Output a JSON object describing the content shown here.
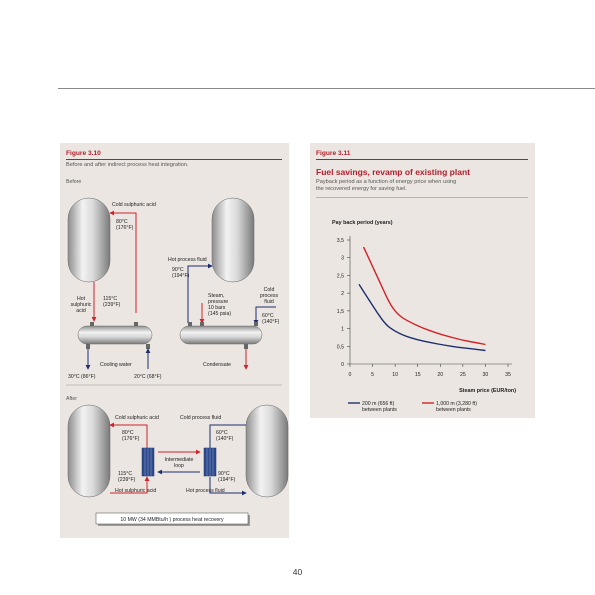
{
  "page_number": "40",
  "left_figure": {
    "label": "Figure 3.10",
    "subtitle": "Before and after indirect process heat integration.",
    "before": {
      "section": "Before",
      "cold_sulphuric_acid": "Cold sulphuric acid",
      "temp_80c": "80°C",
      "temp_176f": "(176°F)",
      "hot_process_fluid": "Hot process fluid",
      "temp_90c": "90°C",
      "temp_194f": "(194°F)",
      "hot_label_1": "Hot",
      "hot_label_2": "sulphuric",
      "hot_label_3": "acid",
      "temp_115c": "115°C",
      "temp_239f": "(239°F)",
      "steam_1": "Steam,",
      "steam_2": "pressure",
      "steam_3": "10 bars",
      "steam_4": "(145 psia)",
      "cold_fluid_1": "Cold",
      "cold_fluid_2": "process",
      "cold_fluid_3": "fluid",
      "temp_60c": "60°C",
      "temp_140f": "(140°F)",
      "cooling_water": "Cooling water",
      "condensate": "Condensate",
      "temp_30c": "30°C (86°F)",
      "temp_20c": "20°C (68°F)"
    },
    "after": {
      "section": "After",
      "cold_sulphuric_acid": "Cold sulphuric acid",
      "cold_process_fluid": "Cold process fluid",
      "temp_80c": "80°C",
      "temp_176f": "(176°F)",
      "temp_60c": "60°C",
      "temp_140f": "(140°F)",
      "loop_1": "Intermediate",
      "loop_2": "loop",
      "temp_115c": "115°C",
      "temp_239f": "(239°F)",
      "temp_90c": "90°C",
      "temp_194f": "(194°F)",
      "hot_sulphuric_acid": "Hot sulphuric acid",
      "hot_process_fluid": "Hot process fluid",
      "recovery": "10 MW (34 MMBtu/h ) process heat recovery"
    }
  },
  "right_figure": {
    "label": "Figure 3.11",
    "title": "Fuel savings, revamp of existing plant",
    "subtitle_1": "Payback period as a function of energy price when using",
    "subtitle_2": "the recovered energy for saving fuel."
  },
  "chart_data": {
    "type": "line",
    "title": "",
    "ylabel": "Pay back period (years)",
    "xlabel": "Steam price (EUR/ton)",
    "xlim": [
      0,
      35
    ],
    "ylim": [
      0,
      3.5
    ],
    "x_ticks": [
      "0",
      "5",
      "10",
      "15",
      "20",
      "25",
      "30",
      "35"
    ],
    "y_ticks": [
      "0",
      "0,5",
      "1",
      "1,5",
      "2",
      "2,5",
      "3",
      "3,5"
    ],
    "x_tick_values": [
      0,
      5,
      10,
      15,
      20,
      25,
      30,
      35
    ],
    "y_tick_values": [
      0,
      0.5,
      1,
      1.5,
      2,
      2.5,
      3,
      3.5
    ],
    "legend_position": "bottom",
    "series": [
      {
        "name": "200 m (656 ft) between plants",
        "legend_line1": "200 m (656 ft)",
        "legend_line2": "between plants",
        "color": "#1f2f6e",
        "x": [
          2,
          4,
          6,
          8,
          10,
          12,
          15,
          18,
          21,
          24,
          27,
          30
        ],
        "y": [
          2.25,
          1.85,
          1.45,
          1.1,
          0.92,
          0.8,
          0.68,
          0.6,
          0.53,
          0.47,
          0.43,
          0.38
        ]
      },
      {
        "name": "1,000 m (3,280 ft) between plants",
        "legend_line1": "1,000 m (3,280 ft)",
        "legend_line2": "between plants",
        "color": "#d2232a",
        "x": [
          3,
          5,
          7,
          9,
          11,
          13,
          16,
          19,
          22,
          25,
          28,
          30
        ],
        "y": [
          3.3,
          2.75,
          2.2,
          1.65,
          1.35,
          1.2,
          1.02,
          0.88,
          0.77,
          0.67,
          0.6,
          0.55
        ]
      }
    ]
  }
}
